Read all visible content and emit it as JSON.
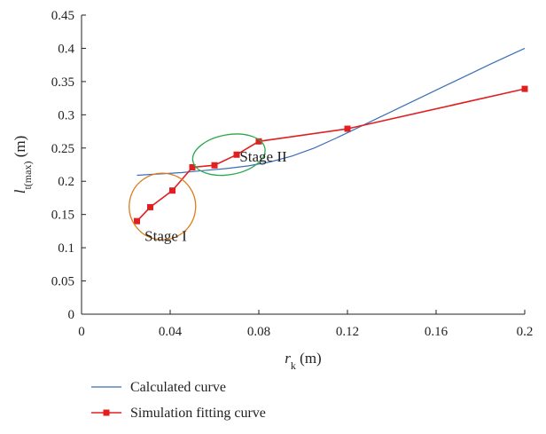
{
  "chart_data": {
    "type": "line",
    "xlabel": {
      "main": "r",
      "sub": "k",
      "unit": " (m)"
    },
    "ylabel": {
      "main": "l",
      "sub": "t(max)",
      "unit": " (m)"
    },
    "xlim": [
      0,
      0.2
    ],
    "ylim": [
      0,
      0.45
    ],
    "x_ticks": [
      "0",
      "0.04",
      "0.08",
      "0.12",
      "0.16",
      "0.2"
    ],
    "x_tick_values": [
      0,
      0.04,
      0.08,
      0.12,
      0.16,
      0.2
    ],
    "y_ticks": [
      "0",
      "0.05",
      "0.1",
      "0.15",
      "0.2",
      "0.25",
      "0.3",
      "0.35",
      "0.4",
      "0.45"
    ],
    "y_tick_values": [
      0,
      0.05,
      0.1,
      0.15,
      0.2,
      0.25,
      0.3,
      0.35,
      0.4,
      0.45
    ],
    "grid": false,
    "legend_position": "bottom",
    "series": [
      {
        "name": "Calculated curve",
        "color": "#3b6fb6",
        "marker": "none",
        "x": [
          0.025,
          0.035,
          0.045,
          0.055,
          0.065,
          0.075,
          0.085,
          0.095,
          0.105,
          0.115,
          0.125,
          0.135,
          0.145,
          0.155,
          0.165,
          0.175,
          0.185,
          0.2
        ],
        "y": [
          0.209,
          0.211,
          0.213,
          0.216,
          0.219,
          0.223,
          0.229,
          0.238,
          0.25,
          0.265,
          0.281,
          0.297,
          0.313,
          0.329,
          0.345,
          0.361,
          0.377,
          0.4
        ]
      },
      {
        "name": "Simulation fitting curve",
        "color": "#e02020",
        "marker": "square",
        "x": [
          0.025,
          0.031,
          0.041,
          0.05,
          0.06,
          0.07,
          0.08,
          0.12,
          0.2
        ],
        "y": [
          0.14,
          0.161,
          0.186,
          0.221,
          0.224,
          0.24,
          0.26,
          0.279,
          0.339
        ]
      }
    ],
    "annotations": [
      {
        "text": "Stage I",
        "x": 0.038,
        "y": 0.11,
        "color": "#e07b1a",
        "ellipse": {
          "cx": 0.0365,
          "cy": 0.162,
          "rx": 0.015,
          "ry": 0.05,
          "rotate": -35
        }
      },
      {
        "text": "Stage II",
        "x": 0.082,
        "y": 0.23,
        "color": "#2aa84a",
        "ellipse": {
          "cx": 0.0665,
          "cy": 0.24,
          "rx": 0.0165,
          "ry": 0.03,
          "rotate": -10
        }
      }
    ]
  }
}
